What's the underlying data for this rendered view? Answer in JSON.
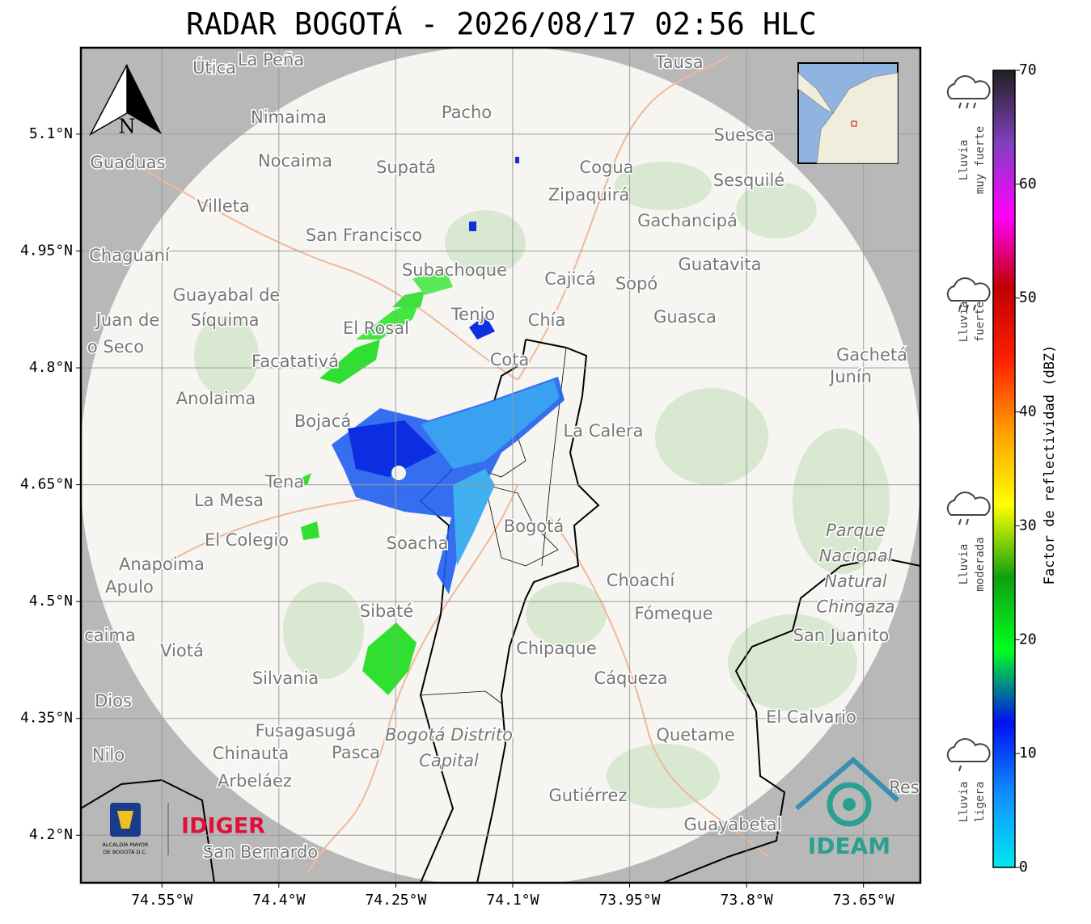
{
  "title": "RADAR BOGOTÁ - 2026/08/17 02:56 HLC",
  "map": {
    "lat_range": [
      4.139,
      5.211
    ],
    "lon_range": [
      -74.654,
      -73.577
    ],
    "lat_ticks": [
      {
        "value": 5.1,
        "label": "5.1°N"
      },
      {
        "value": 4.95,
        "label": "4.95°N"
      },
      {
        "value": 4.8,
        "label": "4.8°N"
      },
      {
        "value": 4.65,
        "label": "4.65°N"
      },
      {
        "value": 4.5,
        "label": "4.5°N"
      },
      {
        "value": 4.35,
        "label": "4.35°N"
      },
      {
        "value": 4.2,
        "label": "4.2°N"
      }
    ],
    "lon_ticks": [
      {
        "value": -74.55,
        "label": "74.55°W"
      },
      {
        "value": -74.4,
        "label": "74.4°W"
      },
      {
        "value": -74.25,
        "label": "74.25°W"
      },
      {
        "value": -74.1,
        "label": "74.1°W"
      },
      {
        "value": -73.95,
        "label": "73.95°W"
      },
      {
        "value": -73.8,
        "label": "73.8°W"
      },
      {
        "value": -73.65,
        "label": "73.65°W"
      }
    ],
    "north": "N",
    "places": [
      "Útica",
      "La Peña",
      "Tausa",
      "Pacho",
      "Nimaima",
      "Guaduas",
      "Nocaima",
      "Supatá",
      "Cogua",
      "Suesca",
      "Sesquilé",
      "Zipaquirá",
      "Villeta",
      "Gachancipá",
      "San Francisco",
      "Chaguaní",
      "Subachoque",
      "Guatavita",
      "Cajicá",
      "Sopó",
      "Guayabal de",
      "Síquima",
      "Juan de",
      "o Seco",
      "El Rosal",
      "Tenjo",
      "Chía",
      "Guasca",
      "Cota",
      "Facatativá",
      "Gachetá",
      "Junín",
      "Anolaima",
      "Bojacá",
      "La Calera",
      "Tena",
      "La Mesa",
      "Bogotá",
      "El Colegio",
      "Soacha",
      "Anapoima",
      "Apulo",
      "Choachí",
      "Fómeque",
      "San Juanito",
      "caima",
      "Sibaté",
      "Viotá",
      "Chipaque",
      "Silvania",
      "Cáqueza",
      "Dios",
      "El Calvario",
      "Fusagasugá",
      "Quetame",
      "Nilo",
      "Chinauta",
      "Pasca",
      "Arbeláez",
      "Gutiérrez",
      "Res",
      "Guayabetal",
      "San Bernardo"
    ],
    "park": [
      "Parque",
      "Nacional",
      "Natural",
      "Chingaza"
    ],
    "district": [
      "Bogotá Distrito",
      "Capital"
    ]
  },
  "logos": {
    "alcaldia": [
      "ALCALDÍA MAYOR",
      "DE BOGOTÁ D.C."
    ],
    "idiger": "IDIGER",
    "ideam": "IDEAM"
  },
  "colorbar": {
    "label": "Factor de reflectividad (dBZ)",
    "range": [
      0,
      70
    ],
    "ticks": [
      0,
      10,
      20,
      30,
      40,
      50,
      60,
      70
    ],
    "colors": [
      "#00e8f0",
      "#1090ff",
      "#0010f0",
      "#00ff20",
      "#10a010",
      "#ffff00",
      "#ffa000",
      "#ff2000",
      "#c00000",
      "#ff00ff",
      "#8040c0",
      "#202020"
    ]
  },
  "legend": [
    [
      "Lluvia",
      "muy fuerte"
    ],
    [
      "Lluvia",
      "fuerte"
    ],
    [
      "Lluvia",
      "moderada"
    ],
    [
      "Lluvia",
      "ligera"
    ]
  ]
}
